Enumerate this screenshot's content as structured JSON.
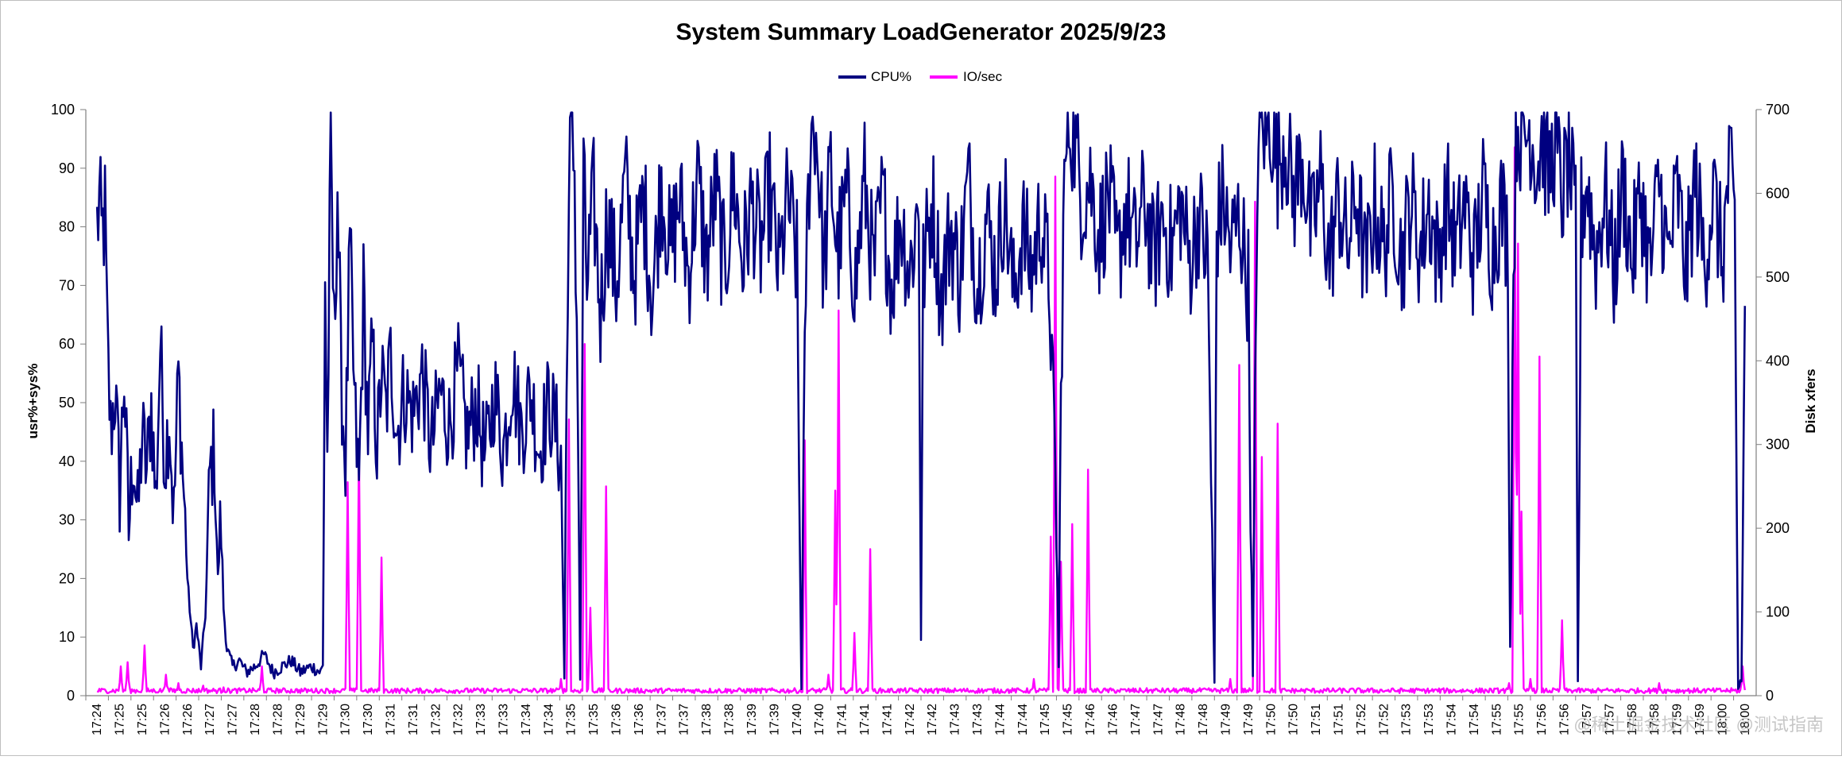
{
  "chart_data": {
    "type": "line",
    "title": "System Summary LoadGenerator  2025/9/23",
    "ylabel_left": "usr%+sys%",
    "ylabel_right": "Disk xfers",
    "ylim_left": [
      0,
      100
    ],
    "ylim_right": [
      0,
      700
    ],
    "yticks_left": [
      0,
      10,
      20,
      30,
      40,
      50,
      60,
      70,
      80,
      90,
      100
    ],
    "yticks_right": [
      0,
      100,
      200,
      300,
      400,
      500,
      600,
      700
    ],
    "legend_position": "top-center",
    "grid": false,
    "x_categories": [
      "17:24",
      "17:25",
      "17:25",
      "17:26",
      "17:26",
      "17:27",
      "17:27",
      "17:28",
      "17:28",
      "17:29",
      "17:29",
      "17:30",
      "17:30",
      "17:31",
      "17:31",
      "17:32",
      "17:32",
      "17:33",
      "17:33",
      "17:34",
      "17:34",
      "17:35",
      "17:35",
      "17:36",
      "17:36",
      "17:37",
      "17:37",
      "17:38",
      "17:38",
      "17:39",
      "17:39",
      "17:40",
      "17:40",
      "17:41",
      "17:41",
      "17:41",
      "17:42",
      "17:42",
      "17:43",
      "17:43",
      "17:44",
      "17:44",
      "17:45",
      "17:45",
      "17:46",
      "17:46",
      "17:47",
      "17:47",
      "17:48",
      "17:48",
      "17:49",
      "17:49",
      "17:50",
      "17:50",
      "17:51",
      "17:51",
      "17:52",
      "17:52",
      "17:53",
      "17:53",
      "17:54",
      "17:54",
      "17:55",
      "17:55",
      "17:56",
      "17:56",
      "17:57",
      "17:57",
      "17:58",
      "17:58",
      "17:59",
      "17:59",
      "18:00",
      "18:00"
    ],
    "series": [
      {
        "name": "CPU%",
        "axis": "left",
        "color": "#000080",
        "keypoints": [
          [
            0.0,
            80
          ],
          [
            0.1,
            84
          ],
          [
            0.2,
            78
          ],
          [
            0.35,
            82
          ],
          [
            0.45,
            60
          ],
          [
            0.6,
            45
          ],
          [
            0.8,
            52
          ],
          [
            1.0,
            35
          ],
          [
            1.2,
            55
          ],
          [
            1.4,
            28
          ],
          [
            1.6,
            42
          ],
          [
            1.8,
            30
          ],
          [
            2.0,
            45
          ],
          [
            2.2,
            38
          ],
          [
            2.4,
            50
          ],
          [
            2.6,
            33
          ],
          [
            2.8,
            60
          ],
          [
            3.0,
            40
          ],
          [
            3.2,
            48
          ],
          [
            3.4,
            30
          ],
          [
            3.6,
            55
          ],
          [
            3.8,
            38
          ],
          [
            4.0,
            20
          ],
          [
            4.1,
            15
          ],
          [
            4.25,
            8
          ],
          [
            4.4,
            12
          ],
          [
            4.6,
            5
          ],
          [
            4.8,
            14
          ],
          [
            5.0,
            38
          ],
          [
            5.2,
            42
          ],
          [
            5.35,
            20
          ],
          [
            5.5,
            30
          ],
          [
            5.6,
            15
          ],
          [
            5.75,
            8
          ],
          [
            6.0,
            5
          ],
          [
            6.3,
            6
          ],
          [
            6.6,
            4
          ],
          [
            7.0,
            5
          ],
          [
            7.4,
            7
          ],
          [
            7.8,
            4
          ],
          [
            8.2,
            5
          ],
          [
            8.6,
            6
          ],
          [
            9.0,
            4
          ],
          [
            9.5,
            5
          ],
          [
            9.9,
            4
          ],
          [
            10.0,
            5
          ],
          [
            10.1,
            72
          ],
          [
            10.2,
            40
          ],
          [
            10.35,
            95
          ],
          [
            10.5,
            60
          ],
          [
            10.65,
            88
          ],
          [
            10.8,
            55
          ],
          [
            11.0,
            40
          ],
          [
            11.2,
            75
          ],
          [
            11.4,
            50
          ],
          [
            11.6,
            35
          ],
          [
            11.8,
            68
          ],
          [
            12.0,
            45
          ],
          [
            12.2,
            60
          ],
          [
            12.4,
            42
          ],
          [
            12.6,
            55
          ],
          [
            12.8,
            48
          ],
          [
            13.0,
            58
          ],
          [
            13.3,
            45
          ],
          [
            13.6,
            52
          ],
          [
            14.0,
            48
          ],
          [
            14.4,
            55
          ],
          [
            14.8,
            42
          ],
          [
            15.2,
            52
          ],
          [
            15.6,
            46
          ],
          [
            16.0,
            55
          ],
          [
            16.4,
            44
          ],
          [
            16.8,
            50
          ],
          [
            17.2,
            40
          ],
          [
            17.6,
            52
          ],
          [
            18.0,
            42
          ],
          [
            18.4,
            55
          ],
          [
            18.8,
            45
          ],
          [
            19.2,
            52
          ],
          [
            19.6,
            42
          ],
          [
            20.0,
            50
          ],
          [
            20.3,
            46
          ],
          [
            20.55,
            40
          ],
          [
            20.7,
            3
          ],
          [
            20.85,
            75
          ],
          [
            21.0,
            98
          ],
          [
            21.15,
            90
          ],
          [
            21.3,
            50
          ],
          [
            21.4,
            2
          ],
          [
            21.55,
            88
          ],
          [
            21.7,
            70
          ],
          [
            22.0,
            85
          ],
          [
            22.3,
            65
          ],
          [
            22.6,
            82
          ],
          [
            23.0,
            70
          ],
          [
            23.4,
            88
          ],
          [
            23.8,
            72
          ],
          [
            24.2,
            85
          ],
          [
            24.6,
            68
          ],
          [
            25.0,
            88
          ],
          [
            25.4,
            75
          ],
          [
            25.8,
            85
          ],
          [
            26.2,
            72
          ],
          [
            26.6,
            88
          ],
          [
            27.0,
            74
          ],
          [
            27.4,
            86
          ],
          [
            27.8,
            72
          ],
          [
            28.2,
            88
          ],
          [
            28.6,
            74
          ],
          [
            29.0,
            84
          ],
          [
            29.4,
            76
          ],
          [
            29.8,
            86
          ],
          [
            30.2,
            72
          ],
          [
            30.6,
            85
          ],
          [
            31.0,
            74
          ],
          [
            31.2,
            2
          ],
          [
            31.4,
            72
          ],
          [
            31.6,
            95
          ],
          [
            31.8,
            98
          ],
          [
            32.0,
            88
          ],
          [
            32.2,
            72
          ],
          [
            32.5,
            90
          ],
          [
            32.8,
            75
          ],
          [
            33.2,
            85
          ],
          [
            33.6,
            70
          ],
          [
            34.0,
            88
          ],
          [
            34.4,
            72
          ],
          [
            34.8,
            85
          ],
          [
            35.2,
            70
          ],
          [
            35.6,
            82
          ],
          [
            36.0,
            72
          ],
          [
            36.4,
            85
          ],
          [
            36.5,
            10
          ],
          [
            36.6,
            72
          ],
          [
            37.0,
            85
          ],
          [
            37.4,
            68
          ],
          [
            37.8,
            80
          ],
          [
            38.2,
            72
          ],
          [
            38.6,
            88
          ],
          [
            39.0,
            70
          ],
          [
            39.4,
            82
          ],
          [
            39.8,
            72
          ],
          [
            40.2,
            85
          ],
          [
            40.6,
            68
          ],
          [
            41.0,
            80
          ],
          [
            41.4,
            72
          ],
          [
            41.8,
            82
          ],
          [
            42.2,
            70
          ],
          [
            42.5,
            30
          ],
          [
            42.6,
            5
          ],
          [
            42.7,
            50
          ],
          [
            42.8,
            80
          ],
          [
            43.0,
            99
          ],
          [
            43.3,
            95
          ],
          [
            43.6,
            85
          ],
          [
            44.0,
            88
          ],
          [
            44.4,
            78
          ],
          [
            44.8,
            86
          ],
          [
            45.2,
            74
          ],
          [
            45.6,
            84
          ],
          [
            46.0,
            76
          ],
          [
            46.4,
            85
          ],
          [
            46.8,
            74
          ],
          [
            47.2,
            82
          ],
          [
            47.6,
            76
          ],
          [
            48.0,
            84
          ],
          [
            48.4,
            74
          ],
          [
            48.8,
            82
          ],
          [
            49.2,
            74
          ],
          [
            49.5,
            2
          ],
          [
            49.6,
            80
          ],
          [
            49.9,
            85
          ],
          [
            50.2,
            76
          ],
          [
            50.6,
            82
          ],
          [
            51.0,
            70
          ],
          [
            51.2,
            3
          ],
          [
            51.4,
            90
          ],
          [
            51.6,
            99
          ],
          [
            51.8,
            95
          ],
          [
            52.0,
            98
          ],
          [
            52.3,
            90
          ],
          [
            52.6,
            96
          ],
          [
            53.0,
            85
          ],
          [
            53.4,
            92
          ],
          [
            53.8,
            78
          ],
          [
            54.2,
            88
          ],
          [
            54.6,
            74
          ],
          [
            55.0,
            85
          ],
          [
            55.4,
            76
          ],
          [
            55.8,
            86
          ],
          [
            56.2,
            72
          ],
          [
            56.6,
            84
          ],
          [
            57.0,
            76
          ],
          [
            57.4,
            86
          ],
          [
            57.8,
            74
          ],
          [
            58.2,
            85
          ],
          [
            58.6,
            76
          ],
          [
            59.0,
            84
          ],
          [
            59.4,
            74
          ],
          [
            59.8,
            85
          ],
          [
            60.2,
            76
          ],
          [
            60.6,
            84
          ],
          [
            61.0,
            74
          ],
          [
            61.4,
            86
          ],
          [
            61.8,
            76
          ],
          [
            62.2,
            84
          ],
          [
            62.5,
            78
          ],
          [
            62.6,
            8
          ],
          [
            62.75,
            75
          ],
          [
            62.9,
            98
          ],
          [
            63.2,
            95
          ],
          [
            63.5,
            97
          ],
          [
            63.8,
            90
          ],
          [
            64.0,
            96
          ],
          [
            64.3,
            88
          ],
          [
            64.6,
            95
          ],
          [
            64.9,
            85
          ],
          [
            65.2,
            92
          ],
          [
            65.5,
            80
          ],
          [
            65.6,
            2
          ],
          [
            65.75,
            82
          ],
          [
            66.0,
            88
          ],
          [
            66.4,
            75
          ],
          [
            66.8,
            86
          ],
          [
            67.2,
            72
          ],
          [
            67.6,
            88
          ],
          [
            68.0,
            74
          ],
          [
            68.4,
            86
          ],
          [
            68.8,
            72
          ],
          [
            69.2,
            88
          ],
          [
            69.6,
            74
          ],
          [
            70.0,
            86
          ],
          [
            70.4,
            72
          ],
          [
            70.8,
            88
          ],
          [
            71.2,
            74
          ],
          [
            71.6,
            86
          ],
          [
            72.0,
            74
          ],
          [
            72.3,
            90
          ],
          [
            72.55,
            80
          ],
          [
            72.7,
            1
          ],
          [
            72.85,
            3
          ],
          [
            73.0,
            65
          ]
        ]
      },
      {
        "name": "IO/sec",
        "axis": "right",
        "color": "#ff00ff",
        "baseline": 3,
        "spikes": [
          [
            1.05,
            35
          ],
          [
            1.35,
            40
          ],
          [
            2.1,
            60
          ],
          [
            3.05,
            25
          ],
          [
            3.6,
            15
          ],
          [
            4.7,
            12
          ],
          [
            5.6,
            10
          ],
          [
            7.3,
            35
          ],
          [
            9.5,
            8
          ],
          [
            11.1,
            255
          ],
          [
            11.6,
            300
          ],
          [
            12.6,
            165
          ],
          [
            20.55,
            20
          ],
          [
            20.9,
            330
          ],
          [
            21.6,
            420
          ],
          [
            21.85,
            105
          ],
          [
            22.55,
            250
          ],
          [
            29.9,
            8
          ],
          [
            31.35,
            305
          ],
          [
            32.4,
            25
          ],
          [
            32.7,
            245
          ],
          [
            32.85,
            460
          ],
          [
            33.55,
            75
          ],
          [
            34.25,
            175
          ],
          [
            41.5,
            20
          ],
          [
            42.25,
            190
          ],
          [
            42.45,
            620
          ],
          [
            42.7,
            160
          ],
          [
            43.2,
            205
          ],
          [
            43.9,
            270
          ],
          [
            50.2,
            20
          ],
          [
            50.6,
            395
          ],
          [
            51.3,
            590
          ],
          [
            51.6,
            285
          ],
          [
            52.3,
            325
          ],
          [
            62.55,
            15
          ],
          [
            62.8,
            655
          ],
          [
            62.95,
            540
          ],
          [
            63.1,
            220
          ],
          [
            63.5,
            20
          ],
          [
            63.9,
            405
          ],
          [
            64.9,
            90
          ],
          [
            69.2,
            15
          ],
          [
            72.9,
            35
          ]
        ]
      }
    ]
  },
  "watermark": "@稀土掘金技术社区 @测试指南"
}
